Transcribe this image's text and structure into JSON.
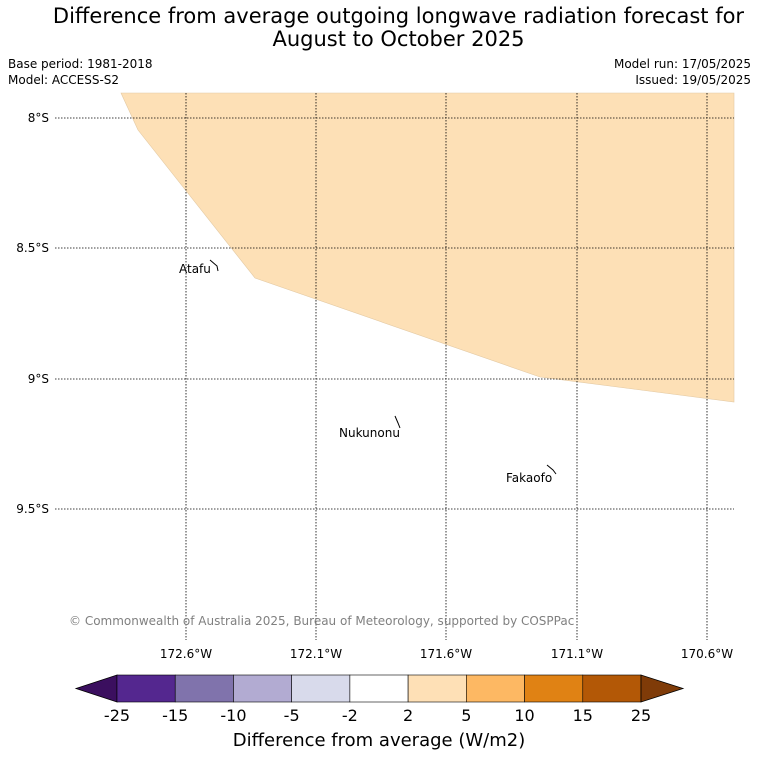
{
  "title": {
    "line1": "Difference from average outgoing longwave radiation forecast for",
    "line2": "August to October 2025"
  },
  "meta": {
    "base_period": "Base period: 1981-2018",
    "model": "Model: ACCESS-S2",
    "model_run": "Model run: 17/05/2025",
    "issued": "Issued: 19/05/2025"
  },
  "map": {
    "lat_labels": [
      "8°S",
      "8.5°S",
      "9°S",
      "9.5°S"
    ],
    "lon_labels": [
      "172.6°W",
      "172.1°W",
      "171.6°W",
      "171.1°W",
      "170.6°W"
    ],
    "places": [
      "Atafu",
      "Nukunonu",
      "Fakaofo"
    ],
    "shaded_color": "#fde0b6",
    "copyright": "© Commonwealth of Australia 2025, Bureau of Meteorology, supported by COSPPac"
  },
  "colorbar": {
    "labels": [
      "-25",
      "-15",
      "-10",
      "-5",
      "-2",
      "2",
      "5",
      "10",
      "15",
      "25"
    ],
    "colors": [
      "#3b0f5f",
      "#54278f",
      "#8073ac",
      "#b2abd2",
      "#d8daeb",
      "#ffffff",
      "#fee0b6",
      "#fdb863",
      "#e08214",
      "#b35806",
      "#7f3b08"
    ],
    "title": "Difference from average (W/m2)"
  }
}
